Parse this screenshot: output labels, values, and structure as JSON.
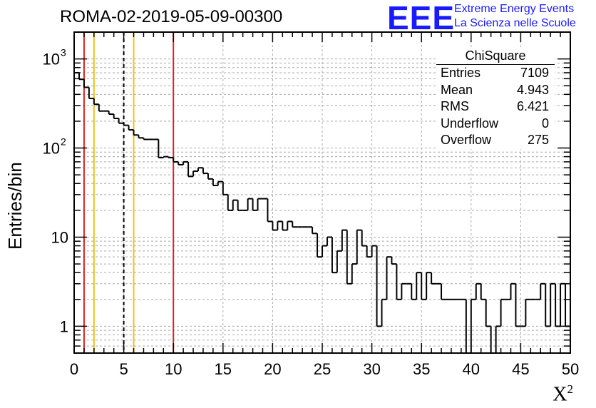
{
  "header": {
    "title": "ROMA-02-2019-05-09-00300",
    "logo": "EEE",
    "logo_line1": "Extreme Energy Events",
    "logo_line2": "La Scienza nelle Scuole"
  },
  "stats_box": {
    "name": "ChiSquare",
    "rows": [
      {
        "label": "Entries",
        "value": "7109"
      },
      {
        "label": "Mean",
        "value": "4.943"
      },
      {
        "label": "RMS",
        "value": "6.421"
      },
      {
        "label": "Underflow",
        "value": "0"
      },
      {
        "label": "Overflow",
        "value": "275"
      }
    ]
  },
  "chart_data": {
    "type": "bar",
    "title": "ROMA-02-2019-05-09-00300",
    "xlabel": "X",
    "xlabel_superscript": "2",
    "ylabel": "Entries/bin",
    "xlim": [
      0,
      50
    ],
    "ylim": [
      0.5,
      2000
    ],
    "yscale": "log",
    "grid": true,
    "bin_width": 0.5,
    "x_ticks": [
      "0",
      "5",
      "10",
      "15",
      "20",
      "25",
      "30",
      "35",
      "40",
      "45",
      "50"
    ],
    "y_ticks": [
      {
        "value": 1,
        "label": "1"
      },
      {
        "value": 10,
        "label": "10"
      },
      {
        "value": 100,
        "label": "10",
        "exp": "2"
      },
      {
        "value": 1000,
        "label": "10",
        "exp": "3"
      }
    ],
    "values": [
      700,
      590,
      480,
      360,
      310,
      260,
      260,
      240,
      215,
      190,
      180,
      160,
      140,
      130,
      125,
      125,
      125,
      78,
      80,
      78,
      70,
      65,
      70,
      48,
      55,
      60,
      52,
      45,
      38,
      42,
      30,
      20,
      26,
      20,
      20,
      27,
      20,
      27,
      27,
      15,
      12,
      15,
      12,
      15,
      13,
      13,
      13,
      13,
      11,
      6,
      8,
      10,
      4,
      7,
      12,
      3,
      5,
      12,
      8,
      6,
      8,
      1,
      2,
      6,
      5,
      2,
      3,
      3,
      2,
      4,
      2,
      4,
      3,
      3,
      2,
      2,
      2,
      2,
      2,
      0,
      2,
      3,
      2,
      1,
      0,
      1,
      2,
      2,
      3,
      1,
      1,
      2,
      2,
      2,
      3,
      1,
      3,
      1,
      3,
      1
    ],
    "lines": [
      {
        "x": 1,
        "color": "#e02020",
        "style": "solid"
      },
      {
        "x": 2,
        "color": "#f0c020",
        "style": "solid"
      },
      {
        "x": 5,
        "color": "#000000",
        "style": "dashed"
      },
      {
        "x": 6,
        "color": "#f0c020",
        "style": "solid"
      },
      {
        "x": 10,
        "color": "#e02020",
        "style": "solid"
      }
    ]
  }
}
